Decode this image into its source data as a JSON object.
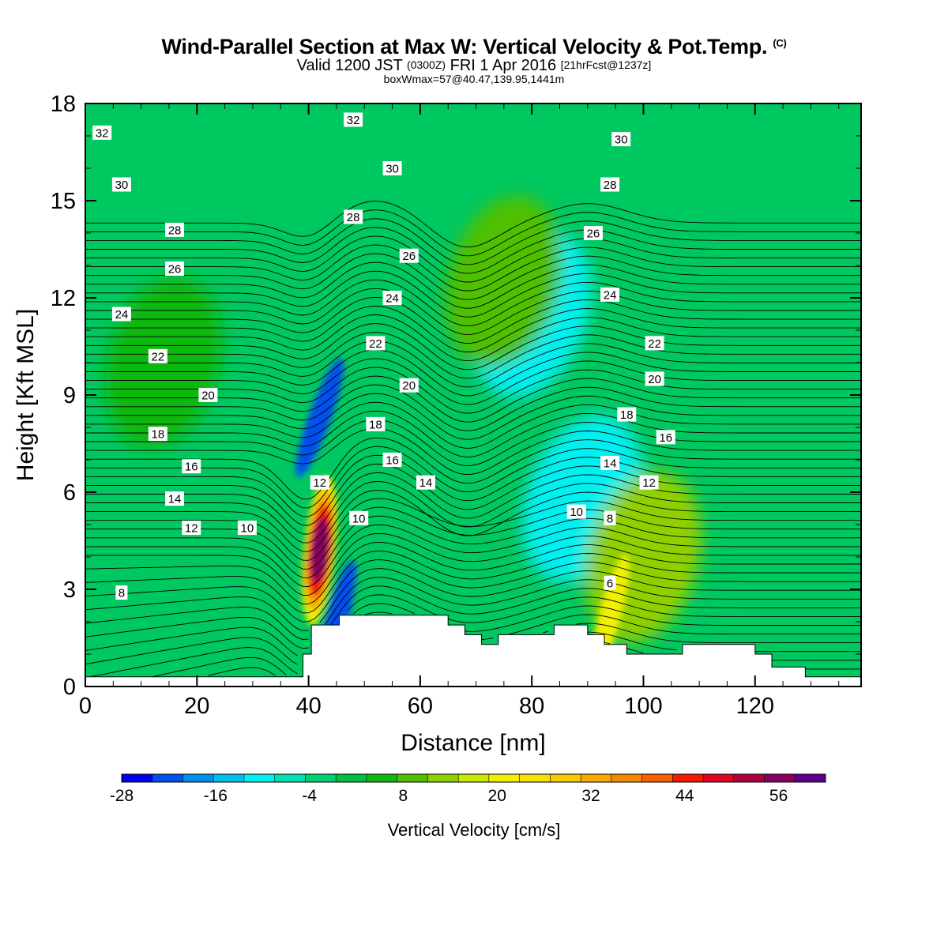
{
  "header": {
    "title": "Wind-Parallel Section at Max W: Vertical Velocity & Pot.Temp.",
    "copyright": "(C)",
    "valid_prefix": "Valid 1200 JST",
    "utc": "(0300Z)",
    "valid_date": "FRI 1 Apr 2016",
    "forecast": "[21hrFcst@1237z]",
    "box_info": "boxWmax=57@40.47,139.95,1441m"
  },
  "chart_data": {
    "type": "heatmap",
    "xlabel": "Distance [nm]",
    "ylabel": "Height [Kft MSL]",
    "xlim": [
      0,
      139
    ],
    "ylim": [
      0,
      18
    ],
    "xticks": [
      0,
      20,
      40,
      60,
      80,
      100,
      120
    ],
    "yticks": [
      0,
      3,
      6,
      9,
      12,
      15,
      18
    ],
    "colorbar": {
      "title": "Vertical Velocity [cm/s]",
      "min": -28,
      "max": 62,
      "step": 4,
      "tick_labels": [
        "-28",
        "-16",
        "-4",
        "8",
        "20",
        "32",
        "44",
        "56"
      ],
      "tick_values": [
        -28,
        -16,
        -4,
        8,
        20,
        32,
        44,
        56
      ],
      "colors": [
        "#0000f0",
        "#0050f0",
        "#0090f0",
        "#00c0f0",
        "#00f0f0",
        "#00e0b0",
        "#00d070",
        "#00c040",
        "#10b810",
        "#50c000",
        "#90d000",
        "#c8e800",
        "#f0f000",
        "#f8e000",
        "#f8c800",
        "#f8a800",
        "#f88800",
        "#f86000",
        "#f81800",
        "#e00020",
        "#b00040",
        "#880060",
        "#600090"
      ]
    },
    "terrain_profile": {
      "x": [
        0,
        39,
        39,
        40.5,
        40.5,
        45.5,
        45.5,
        65,
        65,
        68,
        68,
        71,
        71,
        74,
        74,
        84,
        84,
        90,
        90,
        93,
        93,
        97,
        97,
        107,
        107,
        120,
        120,
        123,
        123,
        129,
        129,
        139
      ],
      "y": [
        0.3,
        0.3,
        1.0,
        1.0,
        1.9,
        1.9,
        2.2,
        2.2,
        1.9,
        1.9,
        1.6,
        1.6,
        1.3,
        1.3,
        1.6,
        1.6,
        1.9,
        1.9,
        1.6,
        1.6,
        1.3,
        1.3,
        1.0,
        1.0,
        1.3,
        1.3,
        1.0,
        1.0,
        0.6,
        0.6,
        0.3,
        0.3
      ]
    },
    "w_features": [
      {
        "x": 42,
        "y": 4.2,
        "value": 57
      },
      {
        "x": 45,
        "y": 2.0,
        "value": -22
      },
      {
        "x": 42,
        "y": 8.3,
        "value": -22
      },
      {
        "x": 80,
        "y": 11.5,
        "value": -12
      },
      {
        "x": 89,
        "y": 5.8,
        "value": -12
      },
      {
        "x": 94,
        "y": 2.2,
        "value": 22
      },
      {
        "x": 75,
        "y": 12.5,
        "value": 10
      },
      {
        "x": 14,
        "y": 10.0,
        "value": 6
      },
      {
        "x": 100,
        "y": 4.0,
        "value": 12
      }
    ],
    "contour_levels": [
      6,
      8,
      10,
      12,
      14,
      16,
      18,
      20,
      22,
      24,
      26,
      28,
      30,
      32
    ],
    "contour_labels": [
      {
        "text": "32",
        "x": 3,
        "y": 17.1
      },
      {
        "text": "32",
        "x": 48,
        "y": 17.5
      },
      {
        "text": "30",
        "x": 96,
        "y": 16.9
      },
      {
        "text": "30",
        "x": 6.5,
        "y": 15.5
      },
      {
        "text": "30",
        "x": 55,
        "y": 16.0
      },
      {
        "text": "28",
        "x": 94,
        "y": 15.5
      },
      {
        "text": "28",
        "x": 16,
        "y": 14.1
      },
      {
        "text": "28",
        "x": 48,
        "y": 14.5
      },
      {
        "text": "26",
        "x": 91,
        "y": 14.0
      },
      {
        "text": "26",
        "x": 16,
        "y": 12.9
      },
      {
        "text": "26",
        "x": 58,
        "y": 13.3
      },
      {
        "text": "24",
        "x": 94,
        "y": 12.1
      },
      {
        "text": "24",
        "x": 6.5,
        "y": 11.5
      },
      {
        "text": "24",
        "x": 55,
        "y": 12.0
      },
      {
        "text": "22",
        "x": 102,
        "y": 10.6
      },
      {
        "text": "22",
        "x": 13,
        "y": 10.2
      },
      {
        "text": "22",
        "x": 52,
        "y": 10.6
      },
      {
        "text": "20",
        "x": 102,
        "y": 9.5
      },
      {
        "text": "20",
        "x": 22,
        "y": 9.0
      },
      {
        "text": "20",
        "x": 58,
        "y": 9.3
      },
      {
        "text": "18",
        "x": 97,
        "y": 8.4
      },
      {
        "text": "18",
        "x": 13,
        "y": 7.8
      },
      {
        "text": "18",
        "x": 52,
        "y": 8.1
      },
      {
        "text": "16",
        "x": 104,
        "y": 7.7
      },
      {
        "text": "16",
        "x": 19,
        "y": 6.8
      },
      {
        "text": "16",
        "x": 55,
        "y": 7.0
      },
      {
        "text": "14",
        "x": 94,
        "y": 6.9
      },
      {
        "text": "14",
        "x": 16,
        "y": 5.8
      },
      {
        "text": "14",
        "x": 61,
        "y": 6.3
      },
      {
        "text": "12",
        "x": 101,
        "y": 6.3
      },
      {
        "text": "12",
        "x": 19,
        "y": 4.9
      },
      {
        "text": "12",
        "x": 42,
        "y": 6.3
      },
      {
        "text": "10",
        "x": 88,
        "y": 5.4
      },
      {
        "text": "10",
        "x": 29,
        "y": 4.9
      },
      {
        "text": "10",
        "x": 49,
        "y": 5.2
      },
      {
        "text": "8",
        "x": 94,
        "y": 5.2
      },
      {
        "text": "8",
        "x": 6.5,
        "y": 2.9
      },
      {
        "text": "6",
        "x": 94,
        "y": 3.2
      }
    ]
  }
}
